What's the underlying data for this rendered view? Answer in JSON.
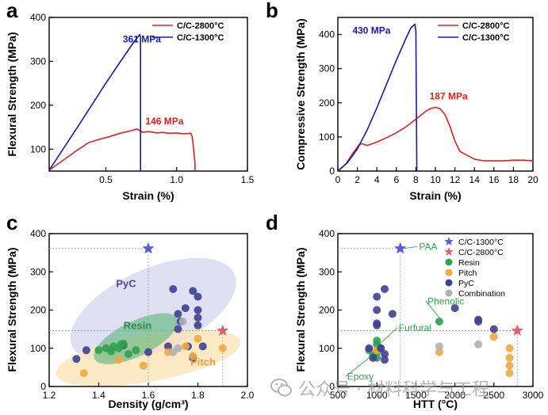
{
  "chart_data": [
    {
      "panel": "a",
      "type": "line",
      "xlabel": "Strain (%)",
      "ylabel": "Flexural Strength (MPa)",
      "xlim": [
        0.1,
        1.5
      ],
      "ylim": [
        50,
        400
      ],
      "xticks": [
        0.5,
        1.0,
        1.5
      ],
      "xtick_labels": [
        "0.5",
        "1.0",
        "1.5"
      ],
      "yticks": [
        100,
        200,
        300,
        400
      ],
      "ytick_labels": [
        "100",
        "200",
        "300",
        "400"
      ],
      "legend_position": "top-right",
      "series": [
        {
          "name": "C/C-2800°C",
          "color": "#e02020",
          "x": [
            0.1,
            0.2,
            0.3,
            0.38,
            0.45,
            0.52,
            0.6,
            0.68,
            0.72,
            0.76,
            0.8,
            0.86,
            0.9,
            0.95,
            1.0,
            1.05,
            1.1,
            1.11,
            1.12,
            1.13,
            1.13
          ],
          "y": [
            52,
            75,
            98,
            115,
            122,
            128,
            136,
            142,
            146,
            138,
            140,
            137,
            138,
            136,
            137,
            135,
            136,
            128,
            100,
            68,
            50
          ]
        },
        {
          "name": "C/C-1300°C",
          "color": "#1a1aa8",
          "x": [
            0.1,
            0.3,
            0.5,
            0.6,
            0.7,
            0.74,
            0.745,
            0.745
          ],
          "y": [
            52,
            150,
            250,
            298,
            345,
            361,
            355,
            50
          ]
        }
      ],
      "annotations": [
        {
          "text": "361 MPa",
          "color": "#1a1aa8"
        },
        {
          "text": "146 MPa",
          "color": "#e02020"
        }
      ]
    },
    {
      "panel": "b",
      "type": "line",
      "xlabel": "Strain (%)",
      "ylabel": "Compressive Strength (MPa)",
      "xlim": [
        0,
        20
      ],
      "ylim": [
        0,
        450
      ],
      "xticks": [
        0,
        2,
        4,
        6,
        8,
        10,
        12,
        14,
        16,
        18,
        20
      ],
      "xtick_labels": [
        "0",
        "2",
        "4",
        "6",
        "8",
        "10",
        "12",
        "14",
        "16",
        "18",
        "20"
      ],
      "yticks": [
        0,
        100,
        200,
        300,
        400
      ],
      "ytick_labels": [
        "0",
        "100",
        "200",
        "300",
        "400"
      ],
      "legend_position": "top-right",
      "series": [
        {
          "name": "C/C-2800°C",
          "color": "#e02020",
          "x": [
            0,
            0.8,
            1.5,
            2.2,
            2.5,
            3,
            4,
            5,
            6,
            7,
            8,
            9,
            9.5,
            10,
            10.5,
            11,
            11.5,
            12,
            12.5,
            13,
            14,
            15,
            16,
            17,
            18,
            19,
            20
          ],
          "y": [
            0,
            20,
            50,
            78,
            80,
            75,
            85,
            98,
            112,
            130,
            152,
            175,
            183,
            187,
            182,
            165,
            130,
            88,
            58,
            50,
            35,
            30,
            30,
            30,
            32,
            32,
            30
          ]
        },
        {
          "name": "C/C-1300°C",
          "color": "#1a1aa8",
          "x": [
            0,
            1,
            2,
            3,
            4,
            5,
            6,
            7,
            7.5,
            7.9,
            8.0,
            8.05,
            8.1
          ],
          "y": [
            0,
            25,
            65,
            120,
            185,
            255,
            325,
            390,
            420,
            430,
            410,
            200,
            0
          ]
        }
      ],
      "annotations": [
        {
          "text": "430 MPa",
          "color": "#1a1aa8"
        },
        {
          "text": "187 MPa",
          "color": "#e02020"
        }
      ]
    },
    {
      "panel": "c",
      "type": "scatter",
      "xlabel": "Density (g/cm³)",
      "ylabel": "Flexural Strength (MPa)",
      "xlim": [
        1.2,
        2.0
      ],
      "ylim": [
        0,
        400
      ],
      "xticks": [
        1.2,
        1.4,
        1.6,
        1.8,
        2.0
      ],
      "xtick_labels": [
        "1.2",
        "1.4",
        "1.6",
        "1.8",
        "2.0"
      ],
      "yticks": [
        0,
        100,
        200,
        300,
        400
      ],
      "ytick_labels": [
        "0",
        "100",
        "200",
        "300",
        "400"
      ],
      "region_labels": [
        {
          "text": "PyC",
          "color": "#4a4a9a"
        },
        {
          "text": "Resin",
          "color": "#2a8a4a"
        },
        {
          "text": "Pitch",
          "color": "#e8a030"
        }
      ],
      "series": [
        {
          "name": "PyC",
          "color": "#404090",
          "x": [
            1.31,
            1.35,
            1.5,
            1.6,
            1.68,
            1.7,
            1.72,
            1.73,
            1.75,
            1.76,
            1.78,
            1.78,
            1.8,
            1.8,
            1.8,
            1.8,
            1.82,
            1.72
          ],
          "y": [
            72,
            95,
            108,
            90,
            105,
            255,
            190,
            170,
            205,
            105,
            250,
            75,
            235,
            200,
            180,
            160,
            105,
            150
          ]
        },
        {
          "name": "Resin",
          "color": "#2fa050",
          "x": [
            1.4,
            1.43,
            1.45,
            1.46,
            1.48,
            1.49,
            1.5,
            1.52,
            1.55
          ],
          "y": [
            95,
            100,
            92,
            105,
            100,
            110,
            112,
            85,
            95
          ]
        },
        {
          "name": "Pitch",
          "color": "#f0a840",
          "x": [
            1.34,
            1.48,
            1.58,
            1.68,
            1.75,
            1.78,
            1.8,
            1.9
          ],
          "y": [
            35,
            70,
            55,
            90,
            105,
            80,
            125,
            100
          ]
        },
        {
          "name": "Combination",
          "color": "#b0b0b0",
          "x": [
            1.72,
            1.74,
            1.7
          ],
          "y": [
            100,
            170,
            90
          ]
        }
      ],
      "stars": [
        {
          "name": "C/C-1300°C",
          "x": 1.6,
          "y": 361,
          "color": "#5a5ad8"
        },
        {
          "name": "C/C-2800°C",
          "x": 1.9,
          "y": 146,
          "color": "#e06070"
        }
      ]
    },
    {
      "panel": "d",
      "type": "scatter",
      "xlabel": "HTT (°C)",
      "ylabel": "Flexural Strength (MPa)",
      "xlim": [
        500,
        3000
      ],
      "ylim": [
        0,
        400
      ],
      "xticks": [
        500,
        1000,
        1500,
        2000,
        2500,
        3000
      ],
      "xtick_labels": [
        "500",
        "1000",
        "1500",
        "2000",
        "2500",
        "3000"
      ],
      "yticks": [
        0,
        100,
        200,
        300,
        400
      ],
      "ytick_labels": [
        "0",
        "100",
        "200",
        "300",
        "400"
      ],
      "legend_position": "top-right",
      "annotations": [
        {
          "text": "PAA",
          "color": "#2fa050"
        },
        {
          "text": "Phenolic",
          "color": "#2fa050"
        },
        {
          "text": "Furfural",
          "color": "#2fa050"
        },
        {
          "text": "Epoxy",
          "color": "#2fa050"
        }
      ],
      "series": [
        {
          "name": "Resin",
          "color": "#2fa050",
          "x": [
            900,
            950,
            1000,
            1000,
            1000,
            1050,
            1000,
            1800
          ],
          "y": [
            95,
            80,
            110,
            90,
            75,
            100,
            120,
            170
          ]
        },
        {
          "name": "Pitch",
          "color": "#f0a840",
          "x": [
            1000,
            1800,
            2500,
            2700,
            2700,
            2700,
            2700
          ],
          "y": [
            95,
            90,
            130,
            100,
            75,
            55,
            35
          ]
        },
        {
          "name": "PyC",
          "color": "#404090",
          "x": [
            900,
            950,
            1000,
            1000,
            1000,
            1000,
            1050,
            1100,
            1100,
            1100,
            1200,
            2000,
            2300,
            2300,
            2500
          ],
          "y": [
            100,
            75,
            235,
            200,
            165,
            160,
            100,
            255,
            85,
            70,
            190,
            205,
            175,
            170,
            150
          ]
        },
        {
          "name": "Combination",
          "color": "#b0b0b0",
          "x": [
            1800,
            2300
          ],
          "y": [
            105,
            110
          ]
        }
      ],
      "stars": [
        {
          "name": "C/C-1300°C",
          "x": 1300,
          "y": 361,
          "color": "#5a5ad8"
        },
        {
          "name": "C/C-2800°C",
          "x": 2800,
          "y": 146,
          "color": "#e06070"
        }
      ],
      "legend": [
        "C/C-1300°C",
        "C/C-2800°C",
        "Resin",
        "Pitch",
        "PyC",
        "Combination"
      ]
    }
  ],
  "panel_letters": [
    "a",
    "b",
    "c",
    "d"
  ],
  "watermark": {
    "text": "公众号 · 材料科学与工程"
  }
}
